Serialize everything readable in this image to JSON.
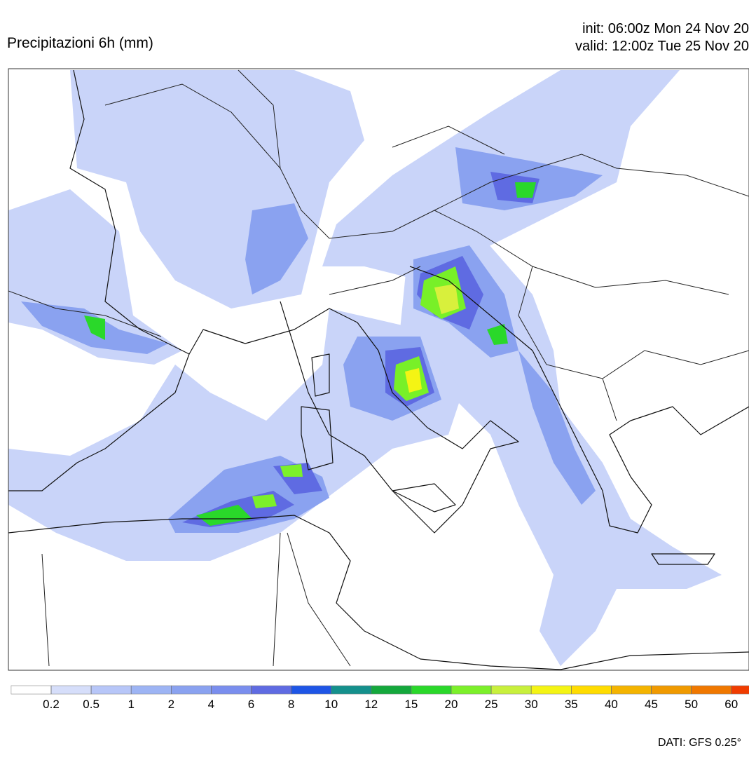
{
  "header": {
    "title": "Precipitazioni 6h (mm)",
    "init": "init: 06:00z Mon 24 Nov 20",
    "valid": "valid: 12:00z Tue 25 Nov 20"
  },
  "legend": {
    "levels": [
      0.2,
      0.5,
      1,
      2,
      4,
      6,
      8,
      10,
      12,
      15,
      20,
      25,
      30,
      35,
      40,
      45,
      50,
      60
    ],
    "colors": [
      "#ffffff",
      "#d6defa",
      "#b7c6f8",
      "#9db4f4",
      "#8aa2f0",
      "#7a8eee",
      "#5f6be2",
      "#1e55e6",
      "#14908c",
      "#14a83c",
      "#2ad82a",
      "#7cf02a",
      "#c8f03c",
      "#f4f414",
      "#ffdc00",
      "#f4b400",
      "#f09a00",
      "#f07800",
      "#f03c00"
    ]
  },
  "footer": {
    "source": "DATI: GFS 0.25°"
  }
}
